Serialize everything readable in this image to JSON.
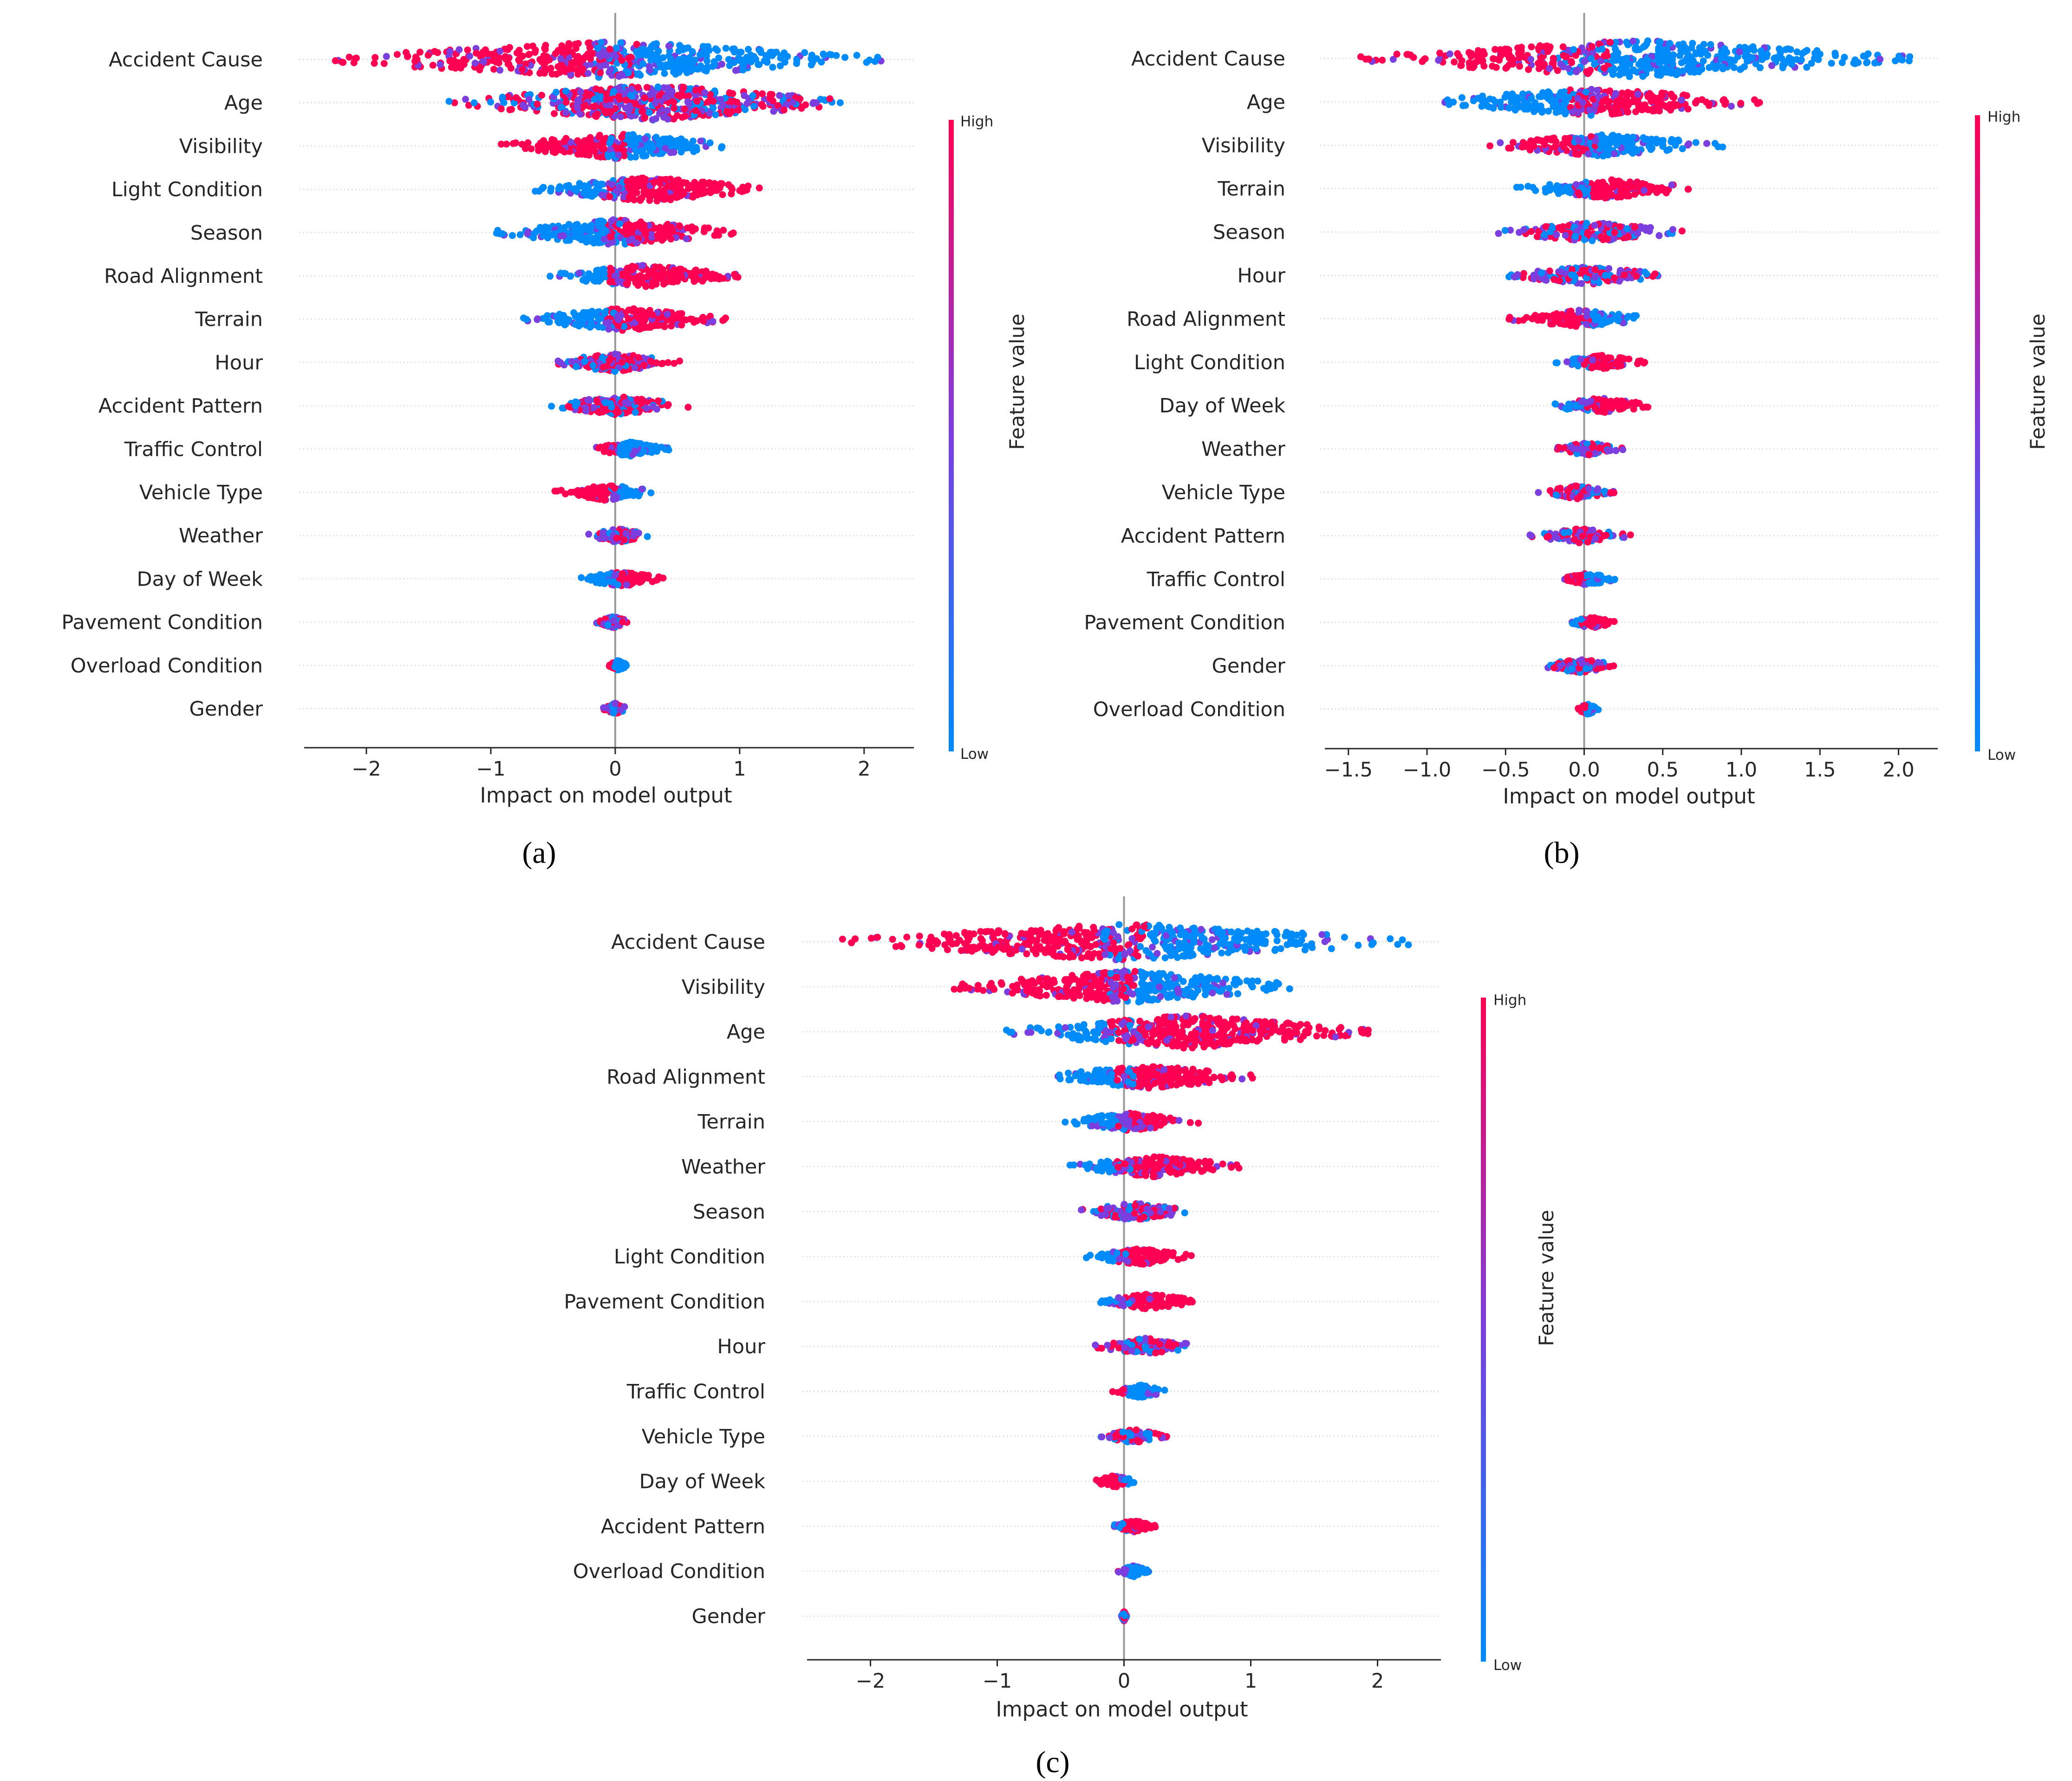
{
  "colors": {
    "high": "#ff0052",
    "low": "#008bfb",
    "mid": "#7b3fe0"
  },
  "chart_data": [
    {
      "type": "scatter",
      "subtype": "shap-beeswarm",
      "caption": "(a)",
      "xlabel": "Impact on model output",
      "ylabel": "",
      "xlim": [
        -2.5,
        2.4
      ],
      "xticks": [
        -2,
        -1,
        0,
        1,
        2
      ],
      "xtick_labels": [
        "−2",
        "−1",
        "0",
        "1",
        "2"
      ],
      "colorbar": {
        "title": "Feature value",
        "high_label": "High",
        "low_label": "Low"
      },
      "features": [
        {
          "name": "Accident Cause",
          "min": -2.3,
          "max": 2.2,
          "high_side": "negative"
        },
        {
          "name": "Age",
          "min": -1.35,
          "max": 1.9,
          "high_side": "mixed"
        },
        {
          "name": "Visibility",
          "min": -0.95,
          "max": 1.0,
          "high_side": "negative"
        },
        {
          "name": "Light Condition",
          "min": -0.65,
          "max": 1.2,
          "high_side": "positive"
        },
        {
          "name": "Season",
          "min": -1.0,
          "max": 1.0,
          "high_side": "positive"
        },
        {
          "name": "Road Alignment",
          "min": -0.55,
          "max": 1.0,
          "high_side": "positive"
        },
        {
          "name": "Terrain",
          "min": -0.75,
          "max": 0.9,
          "high_side": "positive"
        },
        {
          "name": "Hour",
          "min": -0.55,
          "max": 0.55,
          "high_side": "mixed"
        },
        {
          "name": "Accident Pattern",
          "min": -0.55,
          "max": 0.6,
          "high_side": "mixed"
        },
        {
          "name": "Traffic Control",
          "min": -0.2,
          "max": 0.45,
          "high_side": "negative"
        },
        {
          "name": "Vehicle Type",
          "min": -0.5,
          "max": 0.35,
          "high_side": "negative"
        },
        {
          "name": "Weather",
          "min": -0.25,
          "max": 0.3,
          "high_side": "mixed"
        },
        {
          "name": "Day of Week",
          "min": -0.3,
          "max": 0.4,
          "high_side": "positive"
        },
        {
          "name": "Pavement Condition",
          "min": -0.15,
          "max": 0.12,
          "high_side": "mixed"
        },
        {
          "name": "Overload Condition",
          "min": -0.05,
          "max": 0.1,
          "high_side": "negative"
        },
        {
          "name": "Gender",
          "min": -0.1,
          "max": 0.1,
          "high_side": "mixed"
        }
      ]
    },
    {
      "type": "scatter",
      "subtype": "shap-beeswarm",
      "caption": "(b)",
      "xlabel": "Impact on model output",
      "ylabel": "",
      "xlim": [
        -1.65,
        2.25
      ],
      "xticks": [
        -1.5,
        -1.0,
        -0.5,
        0.0,
        0.5,
        1.0,
        1.5,
        2.0
      ],
      "xtick_labels": [
        "−1.5",
        "−1.0",
        "−0.5",
        "0.0",
        "0.5",
        "1.0",
        "1.5",
        "2.0"
      ],
      "colorbar": {
        "title": "Feature value",
        "high_label": "High",
        "low_label": "Low"
      },
      "features": [
        {
          "name": "Accident Cause",
          "min": -1.45,
          "max": 2.1,
          "high_side": "negative"
        },
        {
          "name": "Age",
          "min": -1.05,
          "max": 1.15,
          "high_side": "positive"
        },
        {
          "name": "Visibility",
          "min": -0.65,
          "max": 0.9,
          "high_side": "negative"
        },
        {
          "name": "Terrain",
          "min": -0.45,
          "max": 0.75,
          "high_side": "positive"
        },
        {
          "name": "Season",
          "min": -0.55,
          "max": 0.65,
          "high_side": "mixed"
        },
        {
          "name": "Hour",
          "min": -0.5,
          "max": 0.55,
          "high_side": "mixed"
        },
        {
          "name": "Road Alignment",
          "min": -0.5,
          "max": 0.45,
          "high_side": "negative"
        },
        {
          "name": "Light Condition",
          "min": -0.2,
          "max": 0.4,
          "high_side": "positive"
        },
        {
          "name": "Day of Week",
          "min": -0.25,
          "max": 0.45,
          "high_side": "positive"
        },
        {
          "name": "Weather",
          "min": -0.2,
          "max": 0.25,
          "high_side": "mixed"
        },
        {
          "name": "Vehicle Type",
          "min": -0.3,
          "max": 0.2,
          "high_side": "mixed"
        },
        {
          "name": "Accident Pattern",
          "min": -0.35,
          "max": 0.3,
          "high_side": "mixed"
        },
        {
          "name": "Traffic Control",
          "min": -0.15,
          "max": 0.2,
          "high_side": "negative"
        },
        {
          "name": "Pavement Condition",
          "min": -0.1,
          "max": 0.2,
          "high_side": "positive"
        },
        {
          "name": "Gender",
          "min": -0.3,
          "max": 0.25,
          "high_side": "mixed"
        },
        {
          "name": "Overload Condition",
          "min": -0.05,
          "max": 0.1,
          "high_side": "negative"
        }
      ]
    },
    {
      "type": "scatter",
      "subtype": "shap-beeswarm",
      "caption": "(c)",
      "xlabel": "Impact on model output",
      "ylabel": "",
      "xlim": [
        -2.5,
        2.5
      ],
      "xticks": [
        -2,
        -1,
        0,
        1,
        2
      ],
      "xtick_labels": [
        "−2",
        "−1",
        "0",
        "1",
        "2"
      ],
      "colorbar": {
        "title": "Feature value",
        "high_label": "High",
        "low_label": "Low"
      },
      "features": [
        {
          "name": "Accident Cause",
          "min": -2.3,
          "max": 2.3,
          "high_side": "negative"
        },
        {
          "name": "Visibility",
          "min": -1.35,
          "max": 1.4,
          "high_side": "negative"
        },
        {
          "name": "Age",
          "min": -0.95,
          "max": 1.95,
          "high_side": "positive"
        },
        {
          "name": "Road Alignment",
          "min": -0.65,
          "max": 1.05,
          "high_side": "positive"
        },
        {
          "name": "Terrain",
          "min": -0.5,
          "max": 0.6,
          "high_side": "positive"
        },
        {
          "name": "Weather",
          "min": -0.45,
          "max": 0.95,
          "high_side": "positive"
        },
        {
          "name": "Season",
          "min": -0.4,
          "max": 0.55,
          "high_side": "mixed"
        },
        {
          "name": "Light Condition",
          "min": -0.3,
          "max": 0.55,
          "high_side": "positive"
        },
        {
          "name": "Pavement Condition",
          "min": -0.2,
          "max": 0.6,
          "high_side": "positive"
        },
        {
          "name": "Hour",
          "min": -0.25,
          "max": 0.6,
          "high_side": "mixed"
        },
        {
          "name": "Traffic Control",
          "min": -0.1,
          "max": 0.35,
          "high_side": "negative"
        },
        {
          "name": "Vehicle Type",
          "min": -0.2,
          "max": 0.35,
          "high_side": "mixed"
        },
        {
          "name": "Day of Week",
          "min": -0.25,
          "max": 0.1,
          "high_side": "negative"
        },
        {
          "name": "Accident Pattern",
          "min": -0.1,
          "max": 0.25,
          "high_side": "positive"
        },
        {
          "name": "Overload Condition",
          "min": -0.05,
          "max": 0.2,
          "high_side": "negative"
        },
        {
          "name": "Gender",
          "min": -0.02,
          "max": 0.02,
          "high_side": "mixed"
        }
      ]
    }
  ]
}
